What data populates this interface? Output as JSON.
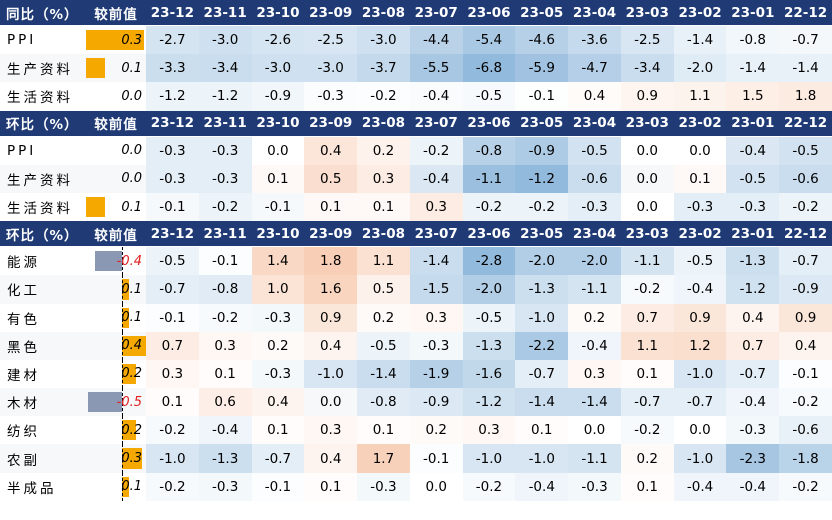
{
  "colors": {
    "header_bg": "#1f3a75",
    "header_fg": "#ffffff",
    "positive_bar": "#f5a800",
    "negative_bar": "#8a98b3",
    "positive_cell": "#f2a679",
    "negative_cell": "#7faed6"
  },
  "chart_data": {
    "type": "table",
    "sections": [
      {
        "id": "yoy",
        "header_label": "同比（%）",
        "delta_header": "较前值",
        "months": [
          "23-12",
          "23-11",
          "23-10",
          "23-09",
          "23-08",
          "23-07",
          "23-06",
          "23-05",
          "23-04",
          "23-03",
          "23-02",
          "23-01",
          "22-12"
        ],
        "axis_marker": false,
        "rows": [
          {
            "label": "PPI",
            "delta": "0.3",
            "values": [
              "-2.7",
              "-3.0",
              "-2.6",
              "-2.5",
              "-3.0",
              "-4.4",
              "-5.4",
              "-4.6",
              "-3.6",
              "-2.5",
              "-1.4",
              "-0.8",
              "-0.7"
            ]
          },
          {
            "label": "生产资料",
            "delta": "0.1",
            "values": [
              "-3.3",
              "-3.4",
              "-3.0",
              "-3.0",
              "-3.7",
              "-5.5",
              "-6.8",
              "-5.9",
              "-4.7",
              "-3.4",
              "-2.0",
              "-1.4",
              "-1.4"
            ]
          },
          {
            "label": "生活资料",
            "delta": "0.0",
            "values": [
              "-1.2",
              "-1.2",
              "-0.9",
              "-0.3",
              "-0.2",
              "-0.4",
              "-0.5",
              "-0.1",
              "0.4",
              "0.9",
              "1.1",
              "1.5",
              "1.8"
            ]
          }
        ]
      },
      {
        "id": "mom",
        "header_label": "环比（%）",
        "delta_header": "较前值",
        "months": [
          "23-12",
          "23-11",
          "23-10",
          "23-09",
          "23-08",
          "23-07",
          "23-06",
          "23-05",
          "23-04",
          "23-03",
          "23-02",
          "23-01",
          "22-12"
        ],
        "axis_marker": false,
        "rows": [
          {
            "label": "PPI",
            "delta": "0.0",
            "values": [
              "-0.3",
              "-0.3",
              "0.0",
              "0.4",
              "0.2",
              "-0.2",
              "-0.8",
              "-0.9",
              "-0.5",
              "0.0",
              "0.0",
              "-0.4",
              "-0.5"
            ]
          },
          {
            "label": "生产资料",
            "delta": "0.0",
            "values": [
              "-0.3",
              "-0.3",
              "0.1",
              "0.5",
              "0.3",
              "-0.4",
              "-1.1",
              "-1.2",
              "-0.6",
              "0.0",
              "0.1",
              "-0.5",
              "-0.6"
            ]
          },
          {
            "label": "生活资料",
            "delta": "0.1",
            "values": [
              "-0.1",
              "-0.2",
              "-0.1",
              "0.1",
              "0.1",
              "0.3",
              "-0.2",
              "-0.2",
              "-0.3",
              "0.0",
              "-0.3",
              "-0.3",
              "-0.2"
            ]
          }
        ]
      },
      {
        "id": "mom_industry",
        "header_label": "环比（%）",
        "delta_header": "较前值",
        "months": [
          "23-12",
          "23-11",
          "23-10",
          "23-09",
          "23-08",
          "23-07",
          "23-06",
          "23-05",
          "23-04",
          "23-03",
          "23-02",
          "23-01",
          "22-12"
        ],
        "axis_marker": true,
        "rows": [
          {
            "label": "能源",
            "delta": "-0.4",
            "values": [
              "-0.5",
              "-0.1",
              "1.4",
              "1.8",
              "1.1",
              "-1.4",
              "-2.8",
              "-2.0",
              "-2.0",
              "-1.1",
              "-0.5",
              "-1.3",
              "-0.7"
            ]
          },
          {
            "label": "化工",
            "delta": "0.1",
            "values": [
              "-0.7",
              "-0.8",
              "1.0",
              "1.6",
              "0.5",
              "-1.5",
              "-2.0",
              "-1.3",
              "-1.1",
              "-0.2",
              "-0.4",
              "-1.2",
              "-0.9"
            ]
          },
          {
            "label": "有色",
            "delta": "0.1",
            "values": [
              "-0.1",
              "-0.2",
              "-0.3",
              "0.9",
              "0.2",
              "0.3",
              "-0.5",
              "-1.0",
              "0.2",
              "0.7",
              "0.9",
              "0.4",
              "0.9"
            ]
          },
          {
            "label": "黑色",
            "delta": "0.4",
            "values": [
              "0.7",
              "0.3",
              "0.2",
              "0.4",
              "-0.5",
              "-0.3",
              "-1.3",
              "-2.2",
              "-0.4",
              "1.1",
              "1.2",
              "0.7",
              "0.4"
            ]
          },
          {
            "label": "建材",
            "delta": "0.2",
            "values": [
              "0.3",
              "0.1",
              "-0.3",
              "-1.0",
              "-1.4",
              "-1.9",
              "-1.6",
              "-0.7",
              "0.3",
              "0.1",
              "-1.0",
              "-0.7",
              "-0.1"
            ]
          },
          {
            "label": "木材",
            "delta": "-0.5",
            "values": [
              "0.1",
              "0.6",
              "0.4",
              "0.0",
              "-0.8",
              "-0.9",
              "-1.2",
              "-1.4",
              "-1.4",
              "-0.7",
              "-0.7",
              "-0.4",
              "-0.2"
            ]
          },
          {
            "label": "纺织",
            "delta": "0.2",
            "values": [
              "-0.2",
              "-0.4",
              "0.1",
              "0.3",
              "0.1",
              "0.2",
              "0.3",
              "0.1",
              "0.0",
              "-0.2",
              "0.0",
              "-0.3",
              "-0.6"
            ]
          },
          {
            "label": "农副",
            "delta": "0.3",
            "values": [
              "-1.0",
              "-1.3",
              "-0.7",
              "0.4",
              "1.7",
              "-0.1",
              "-1.0",
              "-1.0",
              "-1.1",
              "0.2",
              "-1.0",
              "-2.3",
              "-1.8"
            ]
          },
          {
            "label": "半成品",
            "delta": "0.1",
            "values": [
              "-0.2",
              "-0.3",
              "-0.1",
              "0.1",
              "-0.3",
              "0.0",
              "-0.2",
              "-0.4",
              "-0.3",
              "0.1",
              "-0.4",
              "-0.4",
              "-0.2"
            ]
          }
        ]
      }
    ]
  }
}
